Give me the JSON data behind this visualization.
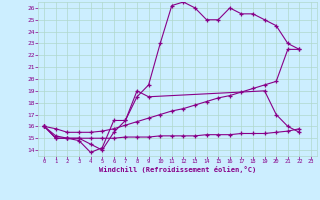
{
  "xlabel": "Windchill (Refroidissement éolien,°C)",
  "bg_color": "#cceeff",
  "grid_color": "#b0d8cc",
  "line_color": "#880088",
  "xlim": [
    -0.5,
    23.5
  ],
  "ylim": [
    13.5,
    26.5
  ],
  "yticks": [
    14,
    15,
    16,
    17,
    18,
    19,
    20,
    21,
    22,
    23,
    24,
    25,
    26
  ],
  "xticks": [
    0,
    1,
    2,
    3,
    4,
    5,
    6,
    7,
    8,
    9,
    10,
    11,
    12,
    13,
    14,
    15,
    16,
    17,
    18,
    19,
    20,
    21,
    22,
    23
  ],
  "series": [
    {
      "x": [
        0,
        1,
        2,
        3,
        4,
        5,
        6,
        7,
        8,
        9,
        10,
        11,
        12,
        13,
        14,
        15,
        16,
        17,
        18,
        19,
        20,
        21,
        22
      ],
      "y": [
        16,
        15,
        15,
        15,
        14.5,
        14,
        15.5,
        16.5,
        18.5,
        19.5,
        23,
        26.2,
        26.5,
        26.0,
        25.0,
        25.0,
        26.0,
        25.5,
        25.5,
        25.0,
        24.5,
        23.0,
        22.5
      ]
    },
    {
      "x": [
        0,
        1,
        2,
        3,
        4,
        5,
        6,
        7,
        8,
        9,
        19,
        20,
        21,
        22
      ],
      "y": [
        16,
        15,
        15,
        14.8,
        13.8,
        14.2,
        16.5,
        16.5,
        19.0,
        18.5,
        19.0,
        17.0,
        16.0,
        15.5
      ]
    },
    {
      "x": [
        0,
        1,
        2,
        3,
        4,
        5,
        6,
        7,
        8,
        9,
        10,
        11,
        12,
        13,
        14,
        15,
        16,
        17,
        18,
        19,
        20,
        21,
        22
      ],
      "y": [
        16,
        15.8,
        15.5,
        15.5,
        15.5,
        15.6,
        15.8,
        16.1,
        16.4,
        16.7,
        17.0,
        17.3,
        17.5,
        17.8,
        18.1,
        18.4,
        18.6,
        18.9,
        19.2,
        19.5,
        19.8,
        22.5,
        22.5
      ]
    },
    {
      "x": [
        0,
        1,
        2,
        3,
        4,
        5,
        6,
        7,
        8,
        9,
        10,
        11,
        12,
        13,
        14,
        15,
        16,
        17,
        18,
        19,
        20,
        21,
        22
      ],
      "y": [
        16,
        15.2,
        15.0,
        15.0,
        15.0,
        15.0,
        15.0,
        15.1,
        15.1,
        15.1,
        15.2,
        15.2,
        15.2,
        15.2,
        15.3,
        15.3,
        15.3,
        15.4,
        15.4,
        15.4,
        15.5,
        15.6,
        15.8
      ]
    }
  ]
}
